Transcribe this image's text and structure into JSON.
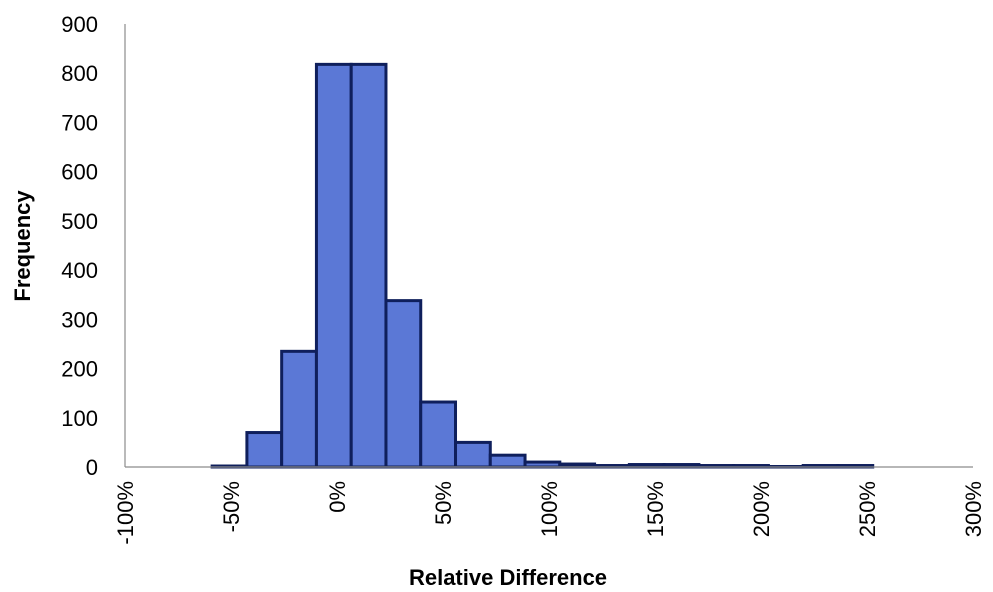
{
  "chart_data": {
    "type": "bar",
    "title": "",
    "xlabel": "Relative Difference",
    "ylabel": "Frequency",
    "xlim": [
      -100,
      300
    ],
    "ylim": [
      0,
      900
    ],
    "x_ticks": [
      -100,
      -50,
      0,
      50,
      100,
      150,
      200,
      250,
      300
    ],
    "x_tick_labels": [
      "-100%",
      "-50%",
      "0%",
      "50%",
      "100%",
      "150%",
      "200%",
      "250%",
      "300%"
    ],
    "y_ticks": [
      0,
      100,
      200,
      300,
      400,
      500,
      600,
      700,
      800,
      900
    ],
    "y_tick_labels": [
      "0",
      "100",
      "200",
      "300",
      "400",
      "500",
      "600",
      "700",
      "800",
      "900"
    ],
    "grid": false,
    "legend": "none",
    "bin_width": 16.4,
    "bins_start": [
      -58.9,
      -42.5,
      -26.1,
      -9.7,
      6.7,
      23.1,
      39.5,
      55.9,
      72.3,
      88.7,
      105.1,
      121.5,
      137.9,
      154.3,
      170.7,
      187.1,
      203.5,
      219.9,
      236.3
    ],
    "values": [
      2,
      70,
      235,
      818,
      818,
      338,
      132,
      50,
      24,
      10,
      6,
      3,
      5,
      5,
      3,
      3,
      1,
      3,
      3
    ],
    "colors": {
      "bar_fill": "#5b78d6",
      "bar_edge": "#0f1f5c",
      "axis": "#8c8c8c"
    }
  }
}
